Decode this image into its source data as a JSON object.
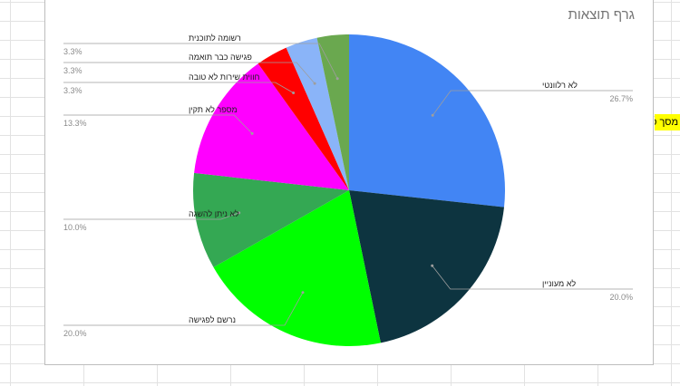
{
  "chart_data": {
    "type": "pie",
    "title": "גרף תוצאות",
    "start_angle_deg": 0,
    "direction": "clockwise",
    "slices": [
      {
        "label": "לא רלוונטי",
        "value": 26.7,
        "value_label": "26.7%",
        "color": "#4285f4"
      },
      {
        "label": "לא מעוניין",
        "value": 20.0,
        "value_label": "20.0%",
        "color": "#0d3440"
      },
      {
        "label": "נרשם לפגישה",
        "value": 20.0,
        "value_label": "20.0%",
        "color": "#00ff00"
      },
      {
        "label": "לא ניתן להשגה",
        "value": 10.0,
        "value_label": "10.0%",
        "color": "#34a853"
      },
      {
        "label": "מספר לא תקין",
        "value": 13.3,
        "value_label": "13.3%",
        "color": "#ff00ff"
      },
      {
        "label": "חווית שירות לא טובה",
        "value": 3.3,
        "value_label": "3.3%",
        "color": "#ff0000"
      },
      {
        "label": "פגישה כבר תואמה",
        "value": 3.3,
        "value_label": "3.3%",
        "color": "#8ab4f8"
      },
      {
        "label": "רשומה לתוכנית",
        "value": 3.3,
        "value_label": "3.3%",
        "color": "#6aa84f"
      }
    ]
  },
  "sheet": {
    "cell_text": "מסך סיום"
  }
}
